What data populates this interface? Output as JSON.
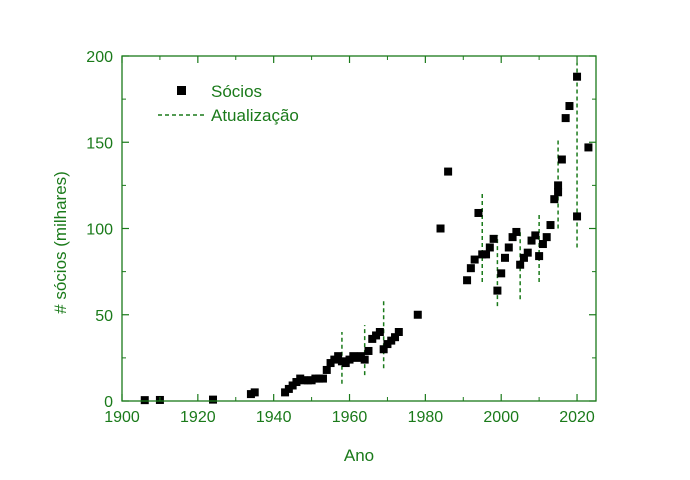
{
  "chart_data": {
    "type": "scatter",
    "xlabel": "Ano",
    "ylabel": "# sócios (milhares)",
    "xlim": [
      1900,
      2025
    ],
    "ylim": [
      0,
      200
    ],
    "xticks": [
      "1900",
      "1920",
      "1940",
      "1960",
      "1980",
      "2000",
      "2020"
    ],
    "yticks": [
      "0",
      "50",
      "100",
      "150",
      "200"
    ],
    "grid": false,
    "legend_position": "top-left",
    "colors": {
      "axis": "#1a7a1a",
      "marker": "#000000",
      "update_line": "#1a7a1a"
    },
    "series": [
      {
        "name": "Sócios",
        "marker": "square",
        "points": [
          [
            1906,
            0.5
          ],
          [
            1910,
            0.6
          ],
          [
            1924,
            0.8
          ],
          [
            1934,
            4
          ],
          [
            1935,
            5
          ],
          [
            1943,
            5
          ],
          [
            1944,
            7
          ],
          [
            1945,
            9
          ],
          [
            1946,
            11
          ],
          [
            1947,
            13
          ],
          [
            1948,
            12
          ],
          [
            1949,
            12
          ],
          [
            1950,
            12
          ],
          [
            1951,
            13
          ],
          [
            1952,
            13
          ],
          [
            1953,
            13
          ],
          [
            1954,
            18
          ],
          [
            1955,
            22
          ],
          [
            1956,
            24
          ],
          [
            1957,
            26
          ],
          [
            1958,
            23
          ],
          [
            1959,
            22
          ],
          [
            1960,
            24
          ],
          [
            1961,
            26
          ],
          [
            1962,
            25
          ],
          [
            1963,
            26
          ],
          [
            1964,
            24
          ],
          [
            1965,
            29
          ],
          [
            1966,
            36
          ],
          [
            1967,
            38
          ],
          [
            1968,
            40
          ],
          [
            1969,
            30
          ],
          [
            1970,
            33
          ],
          [
            1971,
            35
          ],
          [
            1972,
            37
          ],
          [
            1973,
            40
          ],
          [
            1978,
            50
          ],
          [
            1984,
            100
          ],
          [
            1986,
            133
          ],
          [
            1991,
            70
          ],
          [
            1992,
            77
          ],
          [
            1993,
            82
          ],
          [
            1994,
            109
          ],
          [
            1995,
            85
          ],
          [
            1996,
            85
          ],
          [
            1997,
            89
          ],
          [
            1998,
            94
          ],
          [
            1999,
            64
          ],
          [
            2000,
            74
          ],
          [
            2001,
            83
          ],
          [
            2002,
            89
          ],
          [
            2003,
            95
          ],
          [
            2004,
            98
          ],
          [
            2005,
            79
          ],
          [
            2006,
            83
          ],
          [
            2007,
            86
          ],
          [
            2008,
            93
          ],
          [
            2009,
            96
          ],
          [
            2010,
            84
          ],
          [
            2011,
            91
          ],
          [
            2012,
            95
          ],
          [
            2013,
            102
          ],
          [
            2014,
            117
          ],
          [
            2015,
            125
          ],
          [
            2015,
            121
          ],
          [
            2016,
            140
          ],
          [
            2017,
            164
          ],
          [
            2018,
            171
          ],
          [
            2020,
            188
          ],
          [
            2020,
            107
          ],
          [
            2023,
            147
          ]
        ]
      },
      {
        "name": "Atualização",
        "style": "dashed-vertical",
        "segments": [
          [
            1958,
            10,
            40
          ],
          [
            1964,
            15,
            44
          ],
          [
            1969,
            19,
            59
          ],
          [
            1995,
            69,
            121
          ],
          [
            1999,
            55,
            96
          ],
          [
            2005,
            59,
            98
          ],
          [
            2010,
            69,
            109
          ],
          [
            2015,
            100,
            151
          ],
          [
            2020,
            89,
            196
          ]
        ]
      }
    ]
  }
}
